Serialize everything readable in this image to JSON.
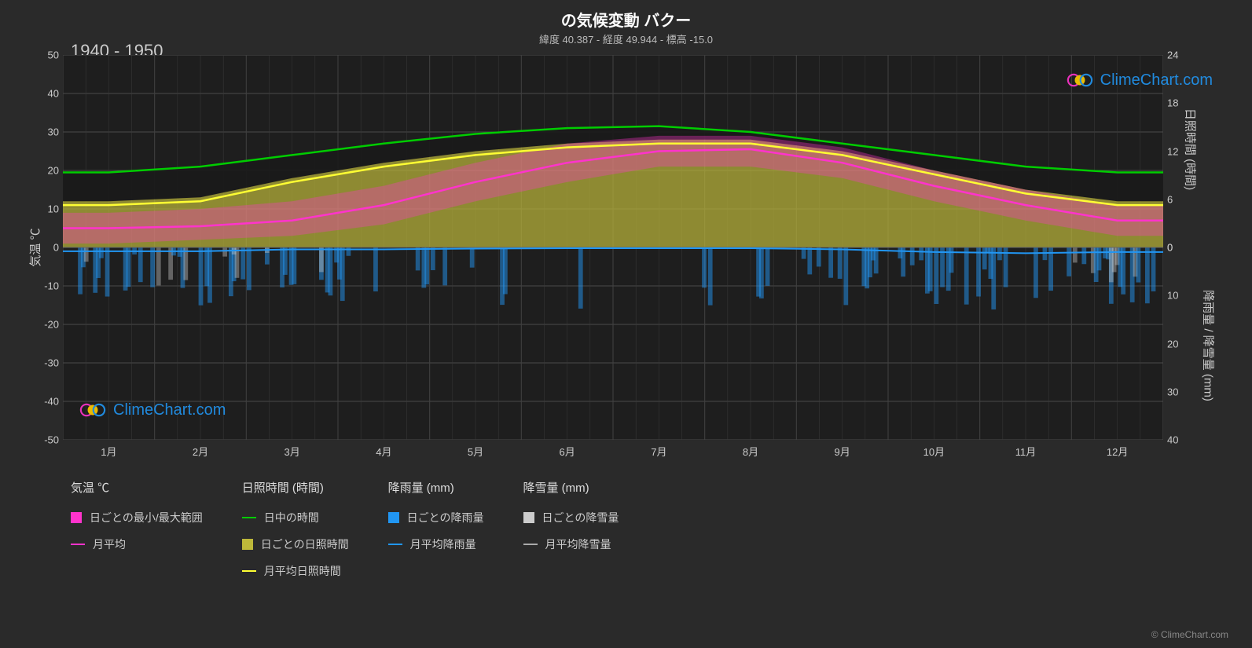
{
  "title": "の気候変動 バクー",
  "subtitle": "緯度 40.387 - 経度 49.944 - 標高 -15.0",
  "period_label": "1940 - 1950",
  "watermark_text": "ClimeChart.com",
  "credit": "© ClimeChart.com",
  "chart": {
    "background_color": "#1e1e1e",
    "grid_color": "#4a4a4a",
    "grid_color_minor": "#3a3a3a",
    "x_labels": [
      "1月",
      "2月",
      "3月",
      "4月",
      "5月",
      "6月",
      "7月",
      "8月",
      "9月",
      "10月",
      "11月",
      "12月"
    ],
    "y_left": {
      "label": "気温 ℃",
      "min": -50,
      "max": 50,
      "step": 10
    },
    "y_right_top": {
      "label": "日照時間 (時間)",
      "min": 0,
      "max": 24,
      "step": 6
    },
    "y_right_bottom": {
      "label": "降雨量 / 降雪量 (mm)",
      "min": 0,
      "max": 40,
      "step": 10
    },
    "series": {
      "daylight": {
        "color": "#00cc00",
        "months": [
          1,
          2,
          3,
          4,
          5,
          6,
          7,
          8,
          9,
          10,
          11,
          12
        ],
        "values_celsius": [
          19.5,
          21,
          24,
          27,
          29.5,
          31,
          31.5,
          30,
          27,
          24,
          21,
          19.5
        ]
      },
      "sunshine_avg": {
        "color": "#ffff33",
        "months": [
          1,
          2,
          3,
          4,
          5,
          6,
          7,
          8,
          9,
          10,
          11,
          12
        ],
        "values_celsius": [
          11,
          12,
          17,
          21,
          24,
          26,
          27,
          27,
          24,
          19,
          14,
          11
        ]
      },
      "temp_avg": {
        "color": "#ff33cc",
        "months": [
          1,
          2,
          3,
          4,
          5,
          6,
          7,
          8,
          9,
          10,
          11,
          12
        ],
        "values_celsius": [
          5,
          5.5,
          7,
          11,
          17,
          22,
          25,
          25.5,
          22,
          16,
          11,
          7
        ]
      },
      "rain_avg": {
        "color": "#2196f3",
        "months": [
          1,
          2,
          3,
          4,
          5,
          6,
          7,
          8,
          9,
          10,
          11,
          12
        ],
        "values_mm_inverted": [
          -1,
          -1,
          -0.5,
          -0.5,
          -0.3,
          -0.2,
          -0.2,
          -0.2,
          -0.5,
          -1.2,
          -1.5,
          -1.2
        ]
      },
      "sunshine_daily_fill": {
        "color": "#bdb83a",
        "opacity": 0.7,
        "top_values": [
          12,
          13,
          18,
          22,
          25,
          27,
          28,
          28,
          25,
          20,
          15,
          12
        ],
        "bottom": 0
      },
      "daily_minmax_fill": {
        "color": "#ff33cc",
        "opacity": 0.35,
        "max_values": [
          9,
          10,
          12,
          16,
          22,
          27,
          29,
          29,
          26,
          20,
          15,
          11
        ],
        "min_values": [
          1,
          2,
          3,
          6,
          12,
          17,
          21,
          21,
          18,
          12,
          7,
          3
        ]
      },
      "dark_fill": {
        "color": "#1a1a1a",
        "top_values": [
          19.5,
          21,
          24,
          27,
          29.5,
          31,
          31.5,
          30,
          27,
          24,
          21,
          19.5
        ],
        "bottom_values": [
          12,
          13,
          18,
          22,
          25,
          27,
          28,
          28,
          25,
          20,
          15,
          12
        ]
      },
      "rain_bars": {
        "color": "#2196f3",
        "opacity": 0.5,
        "daily_sample": [
          2,
          0,
          3,
          1,
          0,
          4,
          8,
          2,
          0,
          1,
          5,
          3,
          0,
          2,
          1,
          0,
          6,
          2,
          0,
          1,
          3,
          0,
          2,
          4,
          1,
          0,
          2,
          0,
          1,
          3,
          0,
          2,
          5,
          1,
          0,
          3,
          2,
          0,
          1,
          4,
          0,
          2,
          1,
          3,
          0,
          5,
          2,
          0,
          1,
          3
        ]
      },
      "snow_bars": {
        "color": "#cccccc",
        "opacity": 0.4,
        "daily_sample": [
          1,
          0,
          2,
          0,
          3,
          1,
          0,
          2,
          0,
          1,
          4,
          0,
          2,
          1,
          0,
          3,
          0,
          1,
          2,
          0,
          0,
          0,
          0,
          0,
          0,
          0,
          0,
          0,
          0,
          0,
          0,
          0,
          0,
          0,
          0,
          0,
          0,
          0,
          0,
          0,
          0,
          0,
          1,
          0,
          2,
          0,
          3,
          1,
          0,
          2
        ]
      }
    }
  },
  "legend": {
    "col1": {
      "header": "気温 ℃",
      "items": [
        {
          "type": "box",
          "color": "#ff33cc",
          "label": "日ごとの最小/最大範囲"
        },
        {
          "type": "line",
          "color": "#ff33cc",
          "label": "月平均"
        }
      ]
    },
    "col2": {
      "header": "日照時間 (時間)",
      "items": [
        {
          "type": "line",
          "color": "#00cc00",
          "label": "日中の時間"
        },
        {
          "type": "box",
          "color": "#bdb83a",
          "label": "日ごとの日照時間"
        },
        {
          "type": "line",
          "color": "#ffff33",
          "label": "月平均日照時間"
        }
      ]
    },
    "col3": {
      "header": "降雨量 (mm)",
      "items": [
        {
          "type": "box",
          "color": "#2196f3",
          "label": "日ごとの降雨量"
        },
        {
          "type": "line",
          "color": "#2196f3",
          "label": "月平均降雨量"
        }
      ]
    },
    "col4": {
      "header": "降雪量 (mm)",
      "items": [
        {
          "type": "box",
          "color": "#cccccc",
          "label": "日ごとの降雪量"
        },
        {
          "type": "line",
          "color": "#aaaaaa",
          "label": "月平均降雪量"
        }
      ]
    }
  },
  "logo_colors": {
    "left_ring": "#ff33cc",
    "circle_fill": "#ffcc00",
    "right_ring": "#2196f3"
  }
}
